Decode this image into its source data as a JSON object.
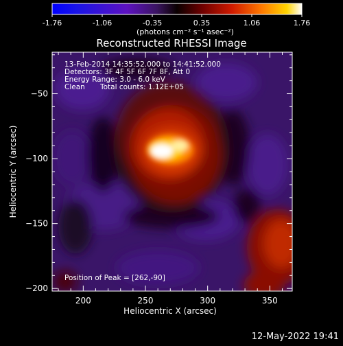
{
  "colorbar": {
    "ticks": [
      "-1.76",
      "-1.06",
      "-0.35",
      "0.35",
      "1.06",
      "1.76"
    ],
    "unit_label": "(photons cm⁻² s⁻¹ asec⁻²)",
    "range": [
      -1.76,
      1.76
    ]
  },
  "chart_data": {
    "type": "heatmap",
    "title": "Reconstructed RHESSI Image",
    "xlabel": "Heliocentric X (arcsec)",
    "ylabel": "Heliocentric Y (arcsec)",
    "xlim": [
      175,
      368
    ],
    "ylim": [
      -202,
      -18
    ],
    "x_ticks": [
      "200",
      "250",
      "300",
      "350"
    ],
    "x_tick_values": [
      200,
      250,
      300,
      350
    ],
    "y_ticks": [
      "−50",
      "−100",
      "−150",
      "−200"
    ],
    "y_tick_values": [
      -50,
      -100,
      -150,
      -200
    ],
    "peak_position": [
      262,
      -90
    ],
    "annotations": {
      "time_range": "13-Feb-2014 14:35:52.000 to 14:41:52.000",
      "detectors": "Detectors: 3F 4F 5F 6F 7F 8F, Att 0",
      "energy": "Energy Range: 3.0 - 6.0 keV",
      "method": "Clean",
      "counts": "Total counts: 1.12E+05",
      "peak": "Position of Peak = [262,-90]"
    }
  },
  "footer": {
    "timestamp": "12-May-2022 19:41"
  }
}
